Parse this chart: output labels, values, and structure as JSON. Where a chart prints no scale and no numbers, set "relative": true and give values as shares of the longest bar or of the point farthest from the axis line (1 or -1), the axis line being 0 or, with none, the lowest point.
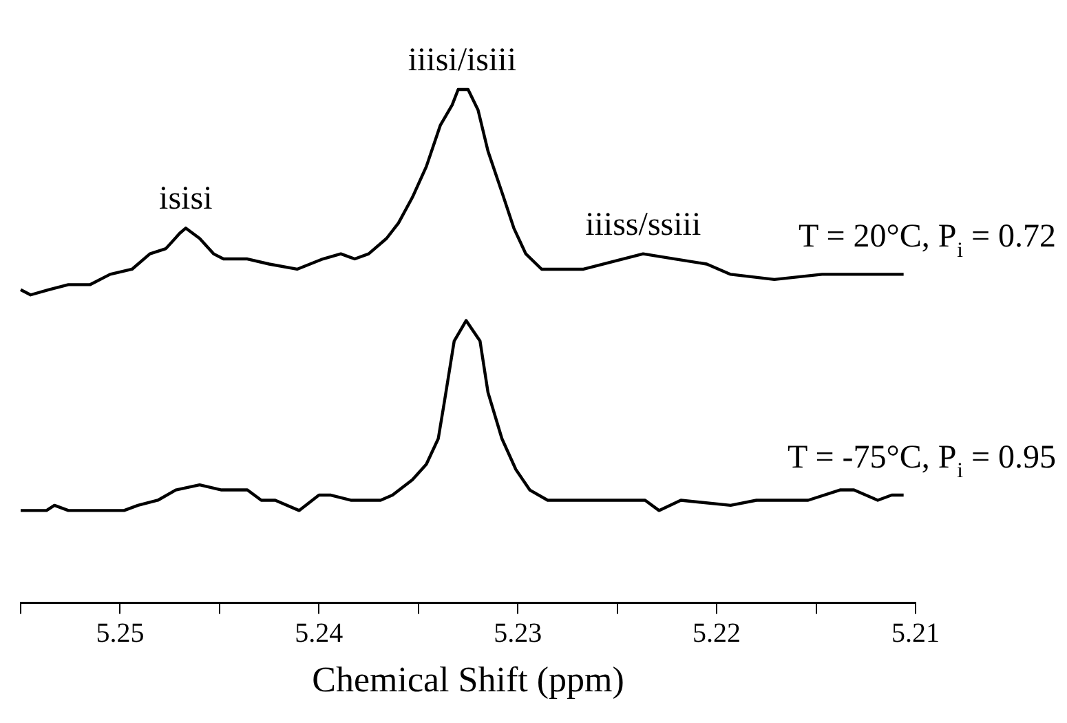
{
  "chart_data": {
    "type": "line",
    "relative": true,
    "xlabel": "Chemical Shift (ppm)",
    "xlim": [
      5.255,
      5.21
    ],
    "xticks": [
      {
        "value": 5.255,
        "label": null
      },
      5.25,
      {
        "value": 5.245,
        "label": null
      },
      5.24,
      {
        "value": 5.235,
        "label": null
      },
      5.23,
      {
        "value": 5.225,
        "label": null
      },
      5.22,
      {
        "value": 5.215,
        "label": null
      },
      5.21
    ],
    "grid": false,
    "series": [
      {
        "name": "T = 20°C, P$_{i}$ = 0.72",
        "color": "#000000",
        "x": [
          5.255,
          5.2545,
          5.2536,
          5.2526,
          5.2515,
          5.2505,
          5.2494,
          5.2485,
          5.2477,
          5.247,
          5.2467,
          5.246,
          5.2453,
          5.2448,
          5.2436,
          5.2425,
          5.2411,
          5.2398,
          5.2389,
          5.2382,
          5.2375,
          5.2366,
          5.236,
          5.2353,
          5.2346,
          5.2339,
          5.2333,
          5.233,
          5.2325,
          5.232,
          5.2315,
          5.2308,
          5.2302,
          5.2296,
          5.2288,
          5.2267,
          5.2237,
          5.2221,
          5.2205,
          5.2193,
          5.2171,
          5.2147,
          5.2126,
          5.2115,
          5.2106
        ],
        "values": [
          0.61,
          0.6,
          0.61,
          0.62,
          0.62,
          0.64,
          0.65,
          0.68,
          0.69,
          0.72,
          0.73,
          0.71,
          0.68,
          0.67,
          0.67,
          0.66,
          0.65,
          0.67,
          0.68,
          0.67,
          0.68,
          0.71,
          0.74,
          0.79,
          0.85,
          0.93,
          0.97,
          1.0,
          1.0,
          0.96,
          0.88,
          0.8,
          0.73,
          0.68,
          0.65,
          0.65,
          0.68,
          0.67,
          0.66,
          0.64,
          0.63,
          0.64,
          0.64,
          0.64,
          0.64
        ]
      },
      {
        "name": "T = -75°C, P$_{i}$ = 0.95",
        "color": "#000000",
        "x": [
          5.255,
          5.2537,
          5.2533,
          5.2526,
          5.2512,
          5.2498,
          5.2491,
          5.2481,
          5.2472,
          5.246,
          5.2449,
          5.2441,
          5.2436,
          5.2429,
          5.2422,
          5.241,
          5.24,
          5.2394,
          5.2384,
          5.2369,
          5.2363,
          5.2353,
          5.2346,
          5.234,
          5.2337,
          5.2332,
          5.2326,
          5.2319,
          5.2315,
          5.2308,
          5.2301,
          5.2294,
          5.2285,
          5.2274,
          5.2247,
          5.2236,
          5.2229,
          5.2218,
          5.2193,
          5.218,
          5.2168,
          5.2154,
          5.2138,
          5.2131,
          5.2119,
          5.2112,
          5.2106
        ],
        "values": [
          0.18,
          0.18,
          0.19,
          0.18,
          0.18,
          0.18,
          0.19,
          0.2,
          0.22,
          0.23,
          0.22,
          0.22,
          0.22,
          0.2,
          0.2,
          0.18,
          0.21,
          0.21,
          0.2,
          0.2,
          0.21,
          0.24,
          0.27,
          0.32,
          0.39,
          0.51,
          0.55,
          0.51,
          0.41,
          0.32,
          0.26,
          0.22,
          0.2,
          0.2,
          0.2,
          0.2,
          0.18,
          0.2,
          0.19,
          0.2,
          0.2,
          0.2,
          0.22,
          0.22,
          0.2,
          0.21,
          0.21
        ]
      }
    ],
    "annotations": [
      {
        "text": "isisi",
        "x": 5.2467,
        "y": 0.73
      },
      {
        "text": "iiisi/isiii",
        "x": 5.2328,
        "y": 1.0
      },
      {
        "text": "iiiss/ssiii",
        "x": 5.2237,
        "y": 0.68
      }
    ]
  }
}
